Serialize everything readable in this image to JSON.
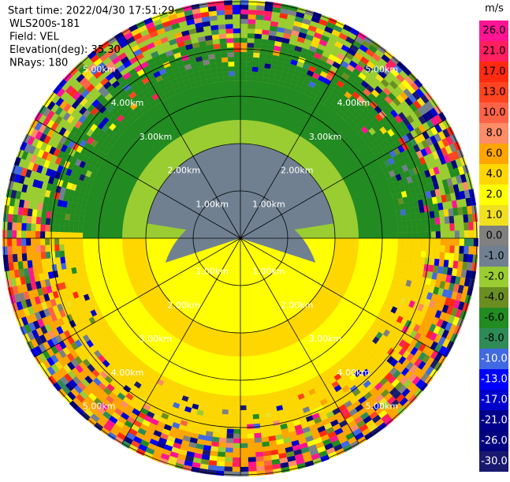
{
  "header": {
    "lines": [
      "Start time: 2022/04/30 17:51:29",
      "WLS200s-181",
      "Field: VEL",
      "Elevation(deg): 35.30",
      "NRays: 180"
    ]
  },
  "range_rings": [
    {
      "value": 1,
      "label": "1.00km"
    },
    {
      "value": 2,
      "label": "2.00km"
    },
    {
      "value": 3,
      "label": "3.00km"
    },
    {
      "value": 4,
      "label": "4.00km"
    },
    {
      "value": 5,
      "label": "5.00km"
    }
  ],
  "colorbar": {
    "unit": "m/s",
    "ticks": [
      {
        "value": 26,
        "label": "26.0"
      },
      {
        "value": 21,
        "label": "21.0"
      },
      {
        "value": 17,
        "label": "17.0"
      },
      {
        "value": 13,
        "label": "13.0"
      },
      {
        "value": 10,
        "label": "10.0"
      },
      {
        "value": 8,
        "label": "8.0"
      },
      {
        "value": 6,
        "label": "6.0"
      },
      {
        "value": 4,
        "label": "4.0"
      },
      {
        "value": 2,
        "label": "2.0"
      },
      {
        "value": 1,
        "label": "1.0"
      },
      {
        "value": 0,
        "label": "0.0"
      },
      {
        "value": -1,
        "label": "-1.0"
      },
      {
        "value": -2,
        "label": "-2.0"
      },
      {
        "value": -4,
        "label": "-4.0"
      },
      {
        "value": -6,
        "label": "-6.0"
      },
      {
        "value": -8,
        "label": "-8.0"
      },
      {
        "value": -10,
        "label": "-10.0"
      },
      {
        "value": -13,
        "label": "-13.0"
      },
      {
        "value": -17,
        "label": "-17.0"
      },
      {
        "value": -21,
        "label": "-21.0"
      },
      {
        "value": -26,
        "label": "-26.0"
      },
      {
        "value": -30,
        "label": "-30.0"
      }
    ],
    "colors": [
      "#ff1493",
      "#ff2060",
      "#ff2a10",
      "#ff4520",
      "#ff6347",
      "#ff8c69",
      "#ffa500",
      "#ffd700",
      "#ffff00",
      "#f0e020",
      "#808080",
      "#708090",
      "#9acd32",
      "#6b8e23",
      "#228b22",
      "#2e8b57",
      "#4169e1",
      "#0000ff",
      "#0000cd",
      "#00008b",
      "#000080",
      "#191970"
    ]
  }
}
